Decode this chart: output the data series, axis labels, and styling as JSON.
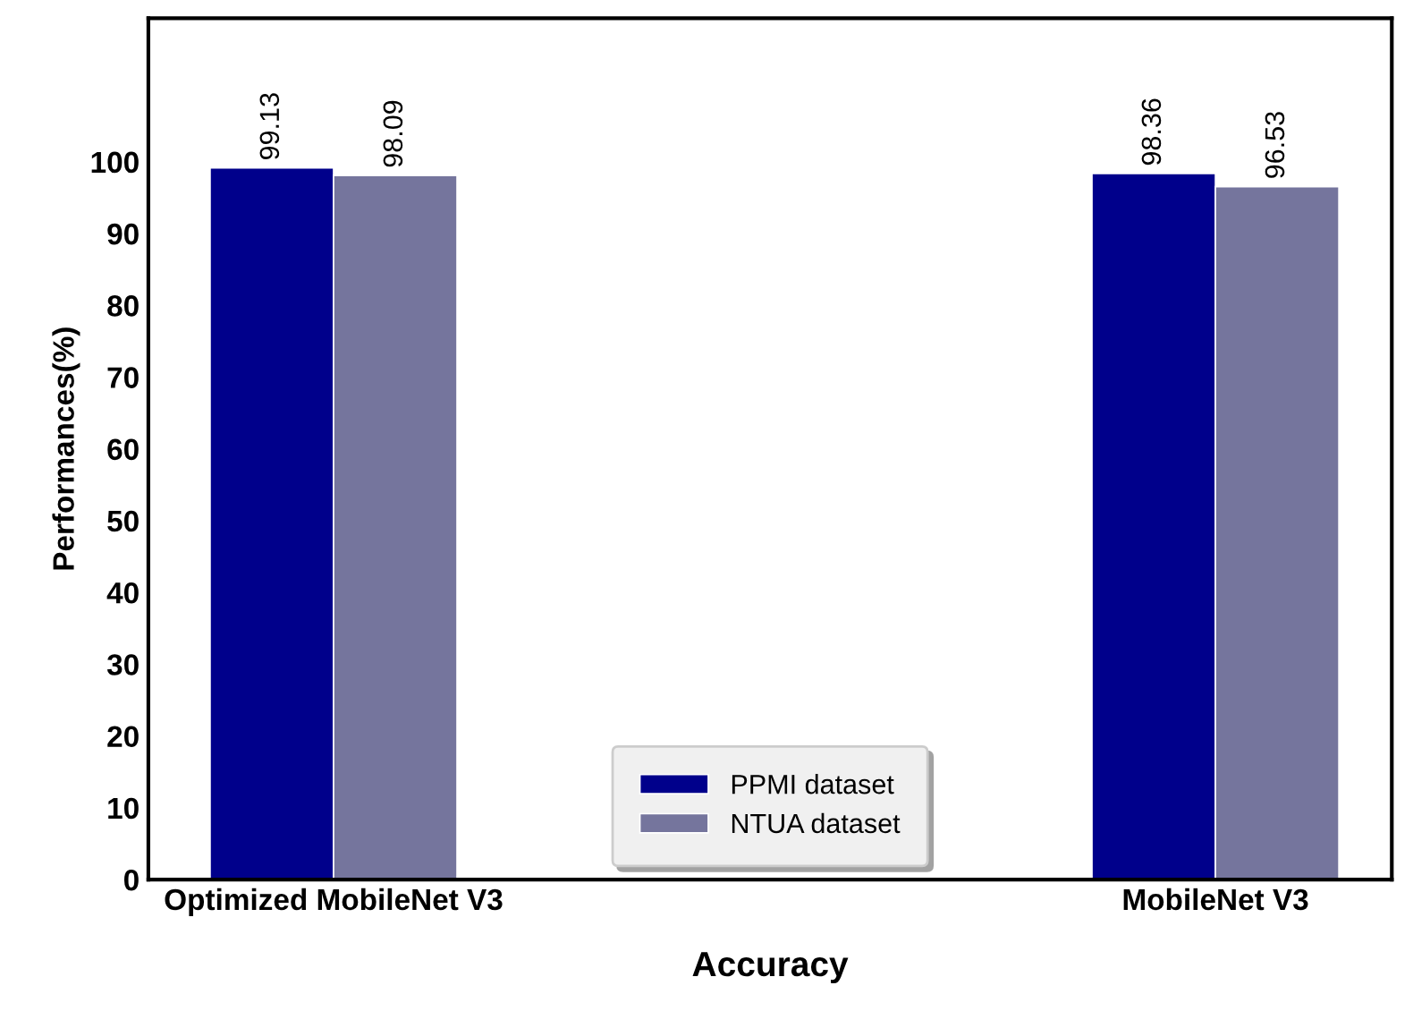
{
  "chart_data": {
    "type": "bar",
    "xlabel": "Accuracy",
    "ylabel": "Performances(%)",
    "categories": [
      "Optimized MobileNet V3",
      "MobileNet V3"
    ],
    "series": [
      {
        "name": "PPMI dataset",
        "color": "#00008b",
        "values": [
          99.13,
          98.36
        ]
      },
      {
        "name": "NTUA dataset",
        "color": "#75759d",
        "values": [
          98.09,
          96.53
        ]
      }
    ],
    "ylim": [
      0,
      120
    ],
    "yticks": [
      0,
      10,
      20,
      30,
      40,
      50,
      60,
      70,
      80,
      90,
      100
    ],
    "data_labels": true,
    "grid": false,
    "legend": "bottom"
  }
}
